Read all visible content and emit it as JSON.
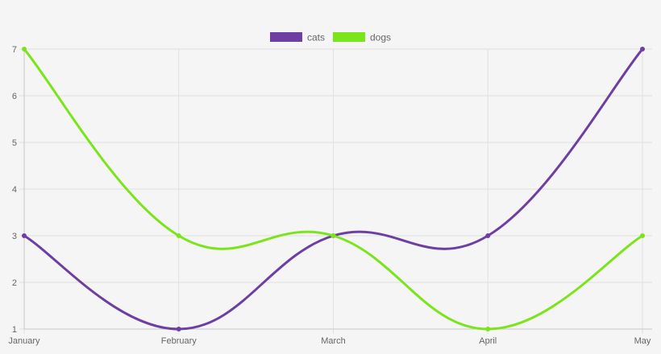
{
  "chart_data": {
    "type": "line",
    "categories": [
      "January",
      "February",
      "March",
      "April",
      "May"
    ],
    "yticks": [
      "1",
      "2",
      "3",
      "4",
      "5",
      "6",
      "7"
    ],
    "ylim": [
      1,
      7
    ],
    "grid": true,
    "legend_position": "top-center",
    "series": [
      {
        "name": "cats",
        "color": "#6e3fa3",
        "values": [
          3,
          1,
          3,
          3,
          7
        ]
      },
      {
        "name": "dogs",
        "color": "#7be51c",
        "values": [
          7,
          3,
          3,
          1,
          3
        ]
      }
    ]
  }
}
